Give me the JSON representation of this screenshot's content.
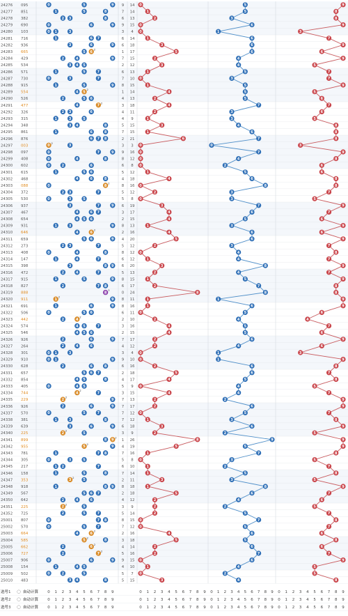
{
  "chart_data": {
    "type": "table",
    "title": "",
    "colors": {
      "red": "#c9444a",
      "blue": "#2f6fb6",
      "tan": "#d98c2a",
      "purple": "#8e44ad",
      "line_red": "#c95a5e",
      "line_blue": "#4f8fc9",
      "grid": "#e3e6ea",
      "band": "#f4f7fb"
    },
    "digits": [
      "0",
      "1",
      "2",
      "3",
      "4",
      "5",
      "6",
      "7",
      "8",
      "9"
    ],
    "rows": [
      {
        "issue": "24276",
        "num": "095",
        "sorted": "059",
        "span": 9,
        "sum": 14
      },
      {
        "issue": "24277",
        "num": "851",
        "sorted": "158",
        "span": 7,
        "sum": 14
      },
      {
        "issue": "24278",
        "num": "382",
        "sorted": "238",
        "span": 6,
        "sum": 13
      },
      {
        "issue": "24279",
        "num": "690",
        "sorted": "069",
        "span": 9,
        "sum": 15
      },
      {
        "issue": "24280",
        "num": "103",
        "sorted": "013",
        "span": 3,
        "sum": 4
      },
      {
        "issue": "24281",
        "num": "716",
        "sorted": "167",
        "span": 6,
        "sum": 14
      },
      {
        "issue": "24282",
        "num": "936",
        "sorted": "369",
        "span": 6,
        "sum": 18
      },
      {
        "issue": "24283",
        "num": "665",
        "sorted": "566",
        "span": 1,
        "sum": 17
      },
      {
        "issue": "24284",
        "num": "429",
        "sorted": "249",
        "span": 7,
        "sum": 15
      },
      {
        "issue": "24285",
        "num": "534",
        "sorted": "345",
        "span": 2,
        "sum": 12
      },
      {
        "issue": "24286",
        "num": "571",
        "sorted": "157",
        "span": 6,
        "sum": 13
      },
      {
        "issue": "24287",
        "num": "730",
        "sorted": "037",
        "span": 7,
        "sum": 10
      },
      {
        "issue": "24288",
        "num": "915",
        "sorted": "159",
        "span": 8,
        "sum": 15
      },
      {
        "issue": "24289",
        "num": "554",
        "sorted": "455",
        "span": 1,
        "sum": 14
      },
      {
        "issue": "24290",
        "num": "526",
        "sorted": "256",
        "span": 4,
        "sum": 13
      },
      {
        "issue": "24291",
        "num": "477",
        "sorted": "477",
        "span": 3,
        "sum": 18
      },
      {
        "issue": "24292",
        "num": "326",
        "sorted": "236",
        "span": 4,
        "sum": 11
      },
      {
        "issue": "24293",
        "num": "315",
        "sorted": "135",
        "span": 4,
        "sum": 9
      },
      {
        "issue": "24294",
        "num": "348",
        "sorted": "348",
        "span": 5,
        "sum": 15
      },
      {
        "issue": "24295",
        "num": "861",
        "sorted": "168",
        "span": 7,
        "sum": 15
      },
      {
        "issue": "24296",
        "num": "876",
        "sorted": "678",
        "span": 2,
        "sum": 21
      },
      {
        "issue": "24297",
        "num": "003",
        "sorted": "003",
        "span": 3,
        "sum": 3
      },
      {
        "issue": "24298",
        "num": "097",
        "sorted": "079",
        "span": 9,
        "sum": 16
      },
      {
        "issue": "24299",
        "num": "408",
        "sorted": "048",
        "span": 8,
        "sum": 12
      },
      {
        "issue": "24300",
        "num": "602",
        "sorted": "026",
        "span": 6,
        "sum": 8
      },
      {
        "issue": "24301",
        "num": "615",
        "sorted": "156",
        "span": 5,
        "sum": 12
      },
      {
        "issue": "24302",
        "num": "468",
        "sorted": "468",
        "span": 4,
        "sum": 18
      },
      {
        "issue": "24303",
        "num": "088",
        "sorted": "088",
        "span": 8,
        "sum": 16
      },
      {
        "issue": "24304",
        "num": "372",
        "sorted": "237",
        "span": 5,
        "sum": 12
      },
      {
        "issue": "24305",
        "num": "530",
        "sorted": "035",
        "span": 5,
        "sum": 8
      },
      {
        "issue": "24306",
        "num": "937",
        "sorted": "379",
        "span": 6,
        "sum": 19
      },
      {
        "issue": "24307",
        "num": "467",
        "sorted": "467",
        "span": 3,
        "sum": 17
      },
      {
        "issue": "24308",
        "num": "654",
        "sorted": "456",
        "span": 2,
        "sum": 15
      },
      {
        "issue": "24309",
        "num": "931",
        "sorted": "139",
        "span": 8,
        "sum": 13
      },
      {
        "issue": "24310",
        "num": "646",
        "sorted": "466",
        "span": 2,
        "sum": 16
      },
      {
        "issue": "24311",
        "num": "659",
        "sorted": "569",
        "span": 4,
        "sum": 20
      },
      {
        "issue": "24312",
        "num": "273",
        "sorted": "237",
        "span": 5,
        "sum": 12
      },
      {
        "issue": "24313",
        "num": "408",
        "sorted": "048",
        "span": 8,
        "sum": 12
      },
      {
        "issue": "24314",
        "num": "147",
        "sorted": "147",
        "span": 6,
        "sum": 12
      },
      {
        "issue": "24315",
        "num": "398",
        "sorted": "389",
        "span": 6,
        "sum": 20
      },
      {
        "issue": "24316",
        "num": "472",
        "sorted": "247",
        "span": 5,
        "sum": 13
      },
      {
        "issue": "24317",
        "num": "915",
        "sorted": "159",
        "span": 8,
        "sum": 15
      },
      {
        "issue": "24318",
        "num": "827",
        "sorted": "278",
        "span": 6,
        "sum": 17
      },
      {
        "issue": "24319",
        "num": "888",
        "sorted": "888",
        "span": 0,
        "sum": 24
      },
      {
        "issue": "24320",
        "num": "911",
        "sorted": "119",
        "span": 8,
        "sum": 11
      },
      {
        "issue": "24321",
        "num": "691",
        "sorted": "169",
        "span": 8,
        "sum": 16
      },
      {
        "issue": "24322",
        "num": "506",
        "sorted": "056",
        "span": 6,
        "sum": 11
      },
      {
        "issue": "24323",
        "num": "442",
        "sorted": "244",
        "span": 2,
        "sum": 10
      },
      {
        "issue": "24324",
        "num": "574",
        "sorted": "457",
        "span": 3,
        "sum": 16
      },
      {
        "issue": "24325",
        "num": "546",
        "sorted": "456",
        "span": 2,
        "sum": 15
      },
      {
        "issue": "24326",
        "num": "926",
        "sorted": "269",
        "span": 7,
        "sum": 17
      },
      {
        "issue": "24327",
        "num": "264",
        "sorted": "246",
        "span": 4,
        "sum": 12
      },
      {
        "issue": "24328",
        "num": "301",
        "sorted": "013",
        "span": 3,
        "sum": 4
      },
      {
        "issue": "24329",
        "num": "910",
        "sorted": "019",
        "span": 9,
        "sum": 10
      },
      {
        "issue": "24330",
        "num": "628",
        "sorted": "268",
        "span": 6,
        "sum": 16
      },
      {
        "issue": "24331",
        "num": "657",
        "sorted": "567",
        "span": 2,
        "sum": 18
      },
      {
        "issue": "24332",
        "num": "854",
        "sorted": "458",
        "span": 4,
        "sum": 17
      },
      {
        "issue": "24333",
        "num": "405",
        "sorted": "045",
        "span": 5,
        "sum": 9
      },
      {
        "issue": "24334",
        "num": "744",
        "sorted": "447",
        "span": 3,
        "sum": 15
      },
      {
        "issue": "24335",
        "num": "229",
        "sorted": "229",
        "span": 7,
        "sum": 13
      },
      {
        "issue": "24336",
        "num": "926",
        "sorted": "269",
        "span": 7,
        "sum": 17
      },
      {
        "issue": "24337",
        "num": "570",
        "sorted": "057",
        "span": 7,
        "sum": 12
      },
      {
        "issue": "24338",
        "num": "381",
        "sorted": "138",
        "span": 7,
        "sum": 12
      },
      {
        "issue": "24339",
        "num": "639",
        "sorted": "369",
        "span": 6,
        "sum": 18
      },
      {
        "issue": "24340",
        "num": "225",
        "sorted": "225",
        "span": 3,
        "sum": 9
      },
      {
        "issue": "24341",
        "num": "899",
        "sorted": "899",
        "span": 1,
        "sum": 26
      },
      {
        "issue": "24342",
        "num": "955",
        "sorted": "559",
        "span": 4,
        "sum": 19
      },
      {
        "issue": "24343",
        "num": "781",
        "sorted": "178",
        "span": 7,
        "sum": 16
      },
      {
        "issue": "24344",
        "num": "305",
        "sorted": "035",
        "span": 5,
        "sum": 8
      },
      {
        "issue": "24345",
        "num": "217",
        "sorted": "127",
        "span": 6,
        "sum": 10
      },
      {
        "issue": "24346",
        "num": "158",
        "sorted": "158",
        "span": 7,
        "sum": 14
      },
      {
        "issue": "24347",
        "num": "353",
        "sorted": "335",
        "span": 2,
        "sum": 11
      },
      {
        "issue": "24348",
        "num": "918",
        "sorted": "189",
        "span": 8,
        "sum": 18
      },
      {
        "issue": "24349",
        "num": "567",
        "sorted": "567",
        "span": 2,
        "sum": 18
      },
      {
        "issue": "24350",
        "num": "642",
        "sorted": "246",
        "span": 4,
        "sum": 12
      },
      {
        "issue": "24351",
        "num": "225",
        "sorted": "225",
        "span": 3,
        "sum": 9
      },
      {
        "issue": "24352",
        "num": "725",
        "sorted": "257",
        "span": 5,
        "sum": 14
      },
      {
        "issue": "25001",
        "num": "807",
        "sorted": "078",
        "span": 8,
        "sum": 15
      },
      {
        "issue": "25002",
        "num": "570",
        "sorted": "057",
        "span": 7,
        "sum": 12
      },
      {
        "issue": "25003",
        "num": "664",
        "sorted": "466",
        "span": 2,
        "sum": 16
      },
      {
        "issue": "25004",
        "num": "585",
        "sorted": "558",
        "span": 3,
        "sum": 18
      },
      {
        "issue": "25005",
        "num": "662",
        "sorted": "266",
        "span": 4,
        "sum": 14
      },
      {
        "issue": "25006",
        "num": "727",
        "sorted": "277",
        "span": 5,
        "sum": 16
      },
      {
        "issue": "25007",
        "num": "906",
        "sorted": "069",
        "span": 9,
        "sum": 15
      },
      {
        "issue": "25008",
        "num": "154",
        "sorted": "145",
        "span": 4,
        "sum": 10
      },
      {
        "issue": "25009",
        "num": "502",
        "sorted": "025",
        "span": 5,
        "sum": 7
      },
      {
        "issue": "25010",
        "num": "483",
        "sorted": "348",
        "span": 5,
        "sum": 15
      }
    ],
    "footer": [
      {
        "label": "选号1",
        "hint": "自动计算"
      },
      {
        "label": "选号2",
        "hint": "自动计算"
      },
      {
        "label": "选号3",
        "hint": "自动计算"
      }
    ]
  }
}
